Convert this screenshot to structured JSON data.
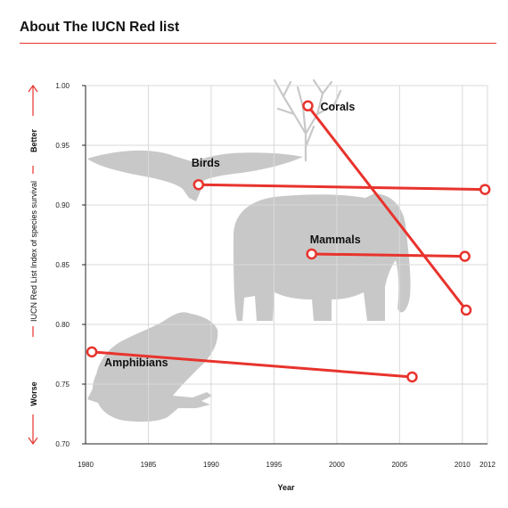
{
  "header": {
    "title": "About The IUCN Red list"
  },
  "colors": {
    "accent": "#e8332c",
    "silhouette": "#c8c8c8",
    "grid": "#d9d9d9"
  },
  "side": {
    "better": "Better",
    "worse": "Worse",
    "index_label": "IUCN Red List Index of species survival"
  },
  "chart_data": {
    "type": "line",
    "title": "About The IUCN Red list",
    "xlabel": "Year",
    "ylabel": "IUCN Red List Index of species survival",
    "xlim": [
      1980,
      2012
    ],
    "ylim": [
      0.7,
      1.0
    ],
    "xticks": [
      1980,
      1985,
      1990,
      1995,
      2000,
      2005,
      2010,
      2012
    ],
    "yticks": [
      "0.70",
      "0.75",
      "0.80",
      "0.85",
      "0.90",
      "0.95",
      "1.00"
    ],
    "grid": true,
    "series": [
      {
        "name": "Corals",
        "points": [
          {
            "x": 1997.7,
            "y": 0.983
          },
          {
            "x": 2010.3,
            "y": 0.812
          }
        ]
      },
      {
        "name": "Birds",
        "points": [
          {
            "x": 1989.0,
            "y": 0.917
          },
          {
            "x": 2011.8,
            "y": 0.913
          }
        ]
      },
      {
        "name": "Mammals",
        "points": [
          {
            "x": 1998.0,
            "y": 0.859
          },
          {
            "x": 2010.2,
            "y": 0.857
          }
        ]
      },
      {
        "name": "Amphibians",
        "points": [
          {
            "x": 1980.5,
            "y": 0.777
          },
          {
            "x": 2006.0,
            "y": 0.756
          }
        ]
      }
    ]
  }
}
